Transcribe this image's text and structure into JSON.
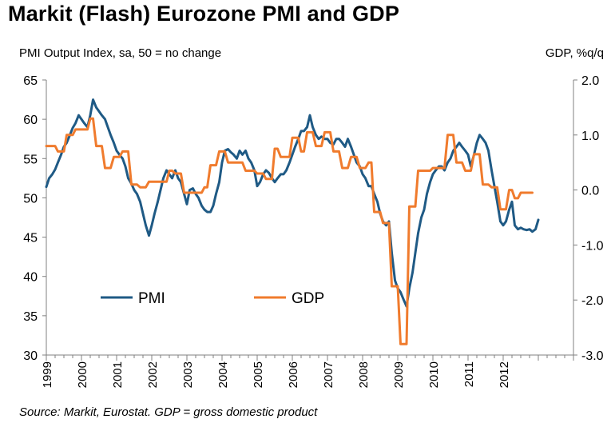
{
  "title": "Markit (Flash) Eurozone PMI and GDP",
  "chart_data": {
    "type": "line",
    "title": "Markit (Flash) Eurozone PMI and GDP",
    "ylabel_left": "PMI Output Index, sa, 50 = no change",
    "ylabel_right": "GDP, %q/q",
    "source": "Source: Markit, Eurostat. GDP = gross domestic product",
    "x_range": [
      1999.0,
      2014.0
    ],
    "ylim_left": [
      30,
      65
    ],
    "ylim_right": [
      -3.0,
      2.0
    ],
    "yticks_left": [
      "65",
      "60",
      "55",
      "50",
      "45",
      "40",
      "35",
      "30"
    ],
    "yticks_right": [
      "2.0",
      "1.0",
      "0.0",
      "-1.0",
      "-2.0",
      "-3.0"
    ],
    "xticks": [
      "1999",
      "2000",
      "2001",
      "2002",
      "2003",
      "2004",
      "2005",
      "2006",
      "2007",
      "2008",
      "2009",
      "2010",
      "2011",
      "2012"
    ],
    "grid": false,
    "legend": "bottom-left",
    "colors": {
      "PMI": "#1f5a85",
      "GDP": "#f07b2d",
      "axis": "#808080"
    },
    "series": [
      {
        "name": "PMI",
        "axis": "left",
        "points": [
          [
            1999.0,
            51.4
          ],
          [
            1999.08,
            52.5
          ],
          [
            1999.17,
            53.0
          ],
          [
            1999.25,
            53.6
          ],
          [
            1999.33,
            54.5
          ],
          [
            1999.42,
            55.5
          ],
          [
            1999.5,
            56.5
          ],
          [
            1999.58,
            57.0
          ],
          [
            1999.67,
            58.0
          ],
          [
            1999.75,
            58.9
          ],
          [
            1999.83,
            59.5
          ],
          [
            1999.92,
            60.5
          ],
          [
            2000.0,
            60.0
          ],
          [
            2000.08,
            59.5
          ],
          [
            2000.17,
            59.0
          ],
          [
            2000.25,
            60.5
          ],
          [
            2000.33,
            62.5
          ],
          [
            2000.42,
            61.5
          ],
          [
            2000.5,
            61.0
          ],
          [
            2000.58,
            60.5
          ],
          [
            2000.67,
            60.0
          ],
          [
            2000.75,
            59.0
          ],
          [
            2000.83,
            58.0
          ],
          [
            2000.92,
            57.0
          ],
          [
            2001.0,
            56.0
          ],
          [
            2001.08,
            55.5
          ],
          [
            2001.17,
            55.0
          ],
          [
            2001.25,
            54.0
          ],
          [
            2001.33,
            52.5
          ],
          [
            2001.42,
            51.8
          ],
          [
            2001.5,
            51.0
          ],
          [
            2001.58,
            50.5
          ],
          [
            2001.67,
            49.5
          ],
          [
            2001.75,
            48.0
          ],
          [
            2001.83,
            46.5
          ],
          [
            2001.92,
            45.2
          ],
          [
            2002.0,
            46.5
          ],
          [
            2002.08,
            48.0
          ],
          [
            2002.17,
            49.5
          ],
          [
            2002.25,
            51.0
          ],
          [
            2002.33,
            52.5
          ],
          [
            2002.42,
            53.5
          ],
          [
            2002.5,
            53.0
          ],
          [
            2002.58,
            52.5
          ],
          [
            2002.67,
            53.5
          ],
          [
            2002.75,
            52.5
          ],
          [
            2002.83,
            52.0
          ],
          [
            2002.92,
            50.5
          ],
          [
            2003.0,
            49.2
          ],
          [
            2003.08,
            51.0
          ],
          [
            2003.17,
            51.2
          ],
          [
            2003.25,
            50.5
          ],
          [
            2003.33,
            50.0
          ],
          [
            2003.42,
            49.0
          ],
          [
            2003.5,
            48.5
          ],
          [
            2003.58,
            48.2
          ],
          [
            2003.67,
            48.2
          ],
          [
            2003.75,
            49.0
          ],
          [
            2003.83,
            50.5
          ],
          [
            2003.92,
            52.0
          ],
          [
            2004.0,
            54.5
          ],
          [
            2004.08,
            56.0
          ],
          [
            2004.17,
            56.2
          ],
          [
            2004.25,
            55.8
          ],
          [
            2004.33,
            55.5
          ],
          [
            2004.42,
            55.0
          ],
          [
            2004.5,
            56.0
          ],
          [
            2004.58,
            55.5
          ],
          [
            2004.67,
            56.0
          ],
          [
            2004.75,
            55.0
          ],
          [
            2004.83,
            54.5
          ],
          [
            2004.92,
            53.5
          ],
          [
            2005.0,
            51.5
          ],
          [
            2005.08,
            52.0
          ],
          [
            2005.17,
            53.0
          ],
          [
            2005.25,
            53.5
          ],
          [
            2005.33,
            53.2
          ],
          [
            2005.42,
            52.5
          ],
          [
            2005.5,
            52.0
          ],
          [
            2005.58,
            52.5
          ],
          [
            2005.67,
            53.0
          ],
          [
            2005.75,
            53.0
          ],
          [
            2005.83,
            53.5
          ],
          [
            2005.92,
            54.5
          ],
          [
            2006.0,
            55.5
          ],
          [
            2006.08,
            56.5
          ],
          [
            2006.17,
            57.5
          ],
          [
            2006.25,
            58.5
          ],
          [
            2006.33,
            58.5
          ],
          [
            2006.42,
            59.0
          ],
          [
            2006.5,
            60.5
          ],
          [
            2006.58,
            59.0
          ],
          [
            2006.67,
            58.0
          ],
          [
            2006.75,
            57.5
          ],
          [
            2006.83,
            57.8
          ],
          [
            2006.92,
            57.5
          ],
          [
            2007.0,
            57.5
          ],
          [
            2007.08,
            57.0
          ],
          [
            2007.17,
            56.8
          ],
          [
            2007.25,
            57.5
          ],
          [
            2007.33,
            57.5
          ],
          [
            2007.42,
            57.0
          ],
          [
            2007.5,
            56.5
          ],
          [
            2007.58,
            57.5
          ],
          [
            2007.67,
            56.5
          ],
          [
            2007.75,
            55.5
          ],
          [
            2007.83,
            54.5
          ],
          [
            2007.92,
            54.0
          ],
          [
            2008.0,
            53.0
          ],
          [
            2008.08,
            52.5
          ],
          [
            2008.17,
            51.5
          ],
          [
            2008.25,
            51.5
          ],
          [
            2008.33,
            50.5
          ],
          [
            2008.42,
            49.5
          ],
          [
            2008.5,
            48.0
          ],
          [
            2008.58,
            47.0
          ],
          [
            2008.67,
            46.5
          ],
          [
            2008.75,
            47.0
          ],
          [
            2008.83,
            43.0
          ],
          [
            2008.92,
            39.5
          ],
          [
            2009.0,
            38.5
          ],
          [
            2009.08,
            38.0
          ],
          [
            2009.17,
            37.0
          ],
          [
            2009.25,
            36.2
          ],
          [
            2009.33,
            38.5
          ],
          [
            2009.42,
            40.5
          ],
          [
            2009.5,
            43.0
          ],
          [
            2009.58,
            45.5
          ],
          [
            2009.67,
            47.5
          ],
          [
            2009.75,
            48.5
          ],
          [
            2009.83,
            50.5
          ],
          [
            2009.92,
            52.0
          ],
          [
            2010.0,
            53.0
          ],
          [
            2010.08,
            53.5
          ],
          [
            2010.17,
            54.0
          ],
          [
            2010.25,
            54.0
          ],
          [
            2010.33,
            53.5
          ],
          [
            2010.42,
            54.5
          ],
          [
            2010.5,
            55.0
          ],
          [
            2010.58,
            56.0
          ],
          [
            2010.67,
            56.5
          ],
          [
            2010.75,
            57.0
          ],
          [
            2010.83,
            56.5
          ],
          [
            2010.92,
            56.0
          ],
          [
            2011.0,
            55.5
          ],
          [
            2011.08,
            54.0
          ],
          [
            2011.17,
            55.5
          ],
          [
            2011.25,
            57.0
          ],
          [
            2011.33,
            58.0
          ],
          [
            2011.42,
            57.5
          ],
          [
            2011.5,
            57.0
          ],
          [
            2011.58,
            56.0
          ],
          [
            2011.67,
            53.5
          ],
          [
            2011.75,
            51.5
          ],
          [
            2011.83,
            49.5
          ],
          [
            2011.92,
            47.0
          ],
          [
            2012.0,
            46.5
          ],
          [
            2012.08,
            47.0
          ],
          [
            2012.17,
            48.5
          ],
          [
            2012.25,
            49.5
          ],
          [
            2012.33,
            46.5
          ],
          [
            2012.42,
            46.0
          ],
          [
            2012.5,
            46.2
          ],
          [
            2012.58,
            46.0
          ],
          [
            2012.67,
            45.9
          ],
          [
            2012.75,
            46.0
          ],
          [
            2012.83,
            45.7
          ],
          [
            2012.92,
            46.0
          ],
          [
            2013.0,
            47.2
          ]
        ]
      },
      {
        "name": "GDP",
        "axis": "right",
        "points": [
          [
            1999.0,
            0.8
          ],
          [
            1999.25,
            0.8
          ],
          [
            1999.33,
            0.7
          ],
          [
            1999.5,
            0.7
          ],
          [
            1999.58,
            1.0
          ],
          [
            1999.75,
            1.0
          ],
          [
            1999.83,
            1.1
          ],
          [
            2000.17,
            1.1
          ],
          [
            2000.25,
            1.3
          ],
          [
            2000.33,
            1.3
          ],
          [
            2000.42,
            0.8
          ],
          [
            2000.58,
            0.8
          ],
          [
            2000.67,
            0.4
          ],
          [
            2000.83,
            0.4
          ],
          [
            2000.92,
            0.6
          ],
          [
            2001.08,
            0.6
          ],
          [
            2001.17,
            0.7
          ],
          [
            2001.33,
            0.7
          ],
          [
            2001.42,
            0.1
          ],
          [
            2001.58,
            0.1
          ],
          [
            2001.67,
            0.05
          ],
          [
            2001.83,
            0.05
          ],
          [
            2001.92,
            0.15
          ],
          [
            2002.42,
            0.15
          ],
          [
            2002.5,
            0.35
          ],
          [
            2002.58,
            0.35
          ],
          [
            2002.67,
            0.3
          ],
          [
            2002.83,
            0.3
          ],
          [
            2002.92,
            -0.05
          ],
          [
            2003.42,
            -0.05
          ],
          [
            2003.5,
            0.05
          ],
          [
            2003.58,
            0.05
          ],
          [
            2003.67,
            0.45
          ],
          [
            2003.83,
            0.45
          ],
          [
            2003.92,
            0.7
          ],
          [
            2004.08,
            0.7
          ],
          [
            2004.17,
            0.5
          ],
          [
            2004.58,
            0.5
          ],
          [
            2004.67,
            0.35
          ],
          [
            2004.92,
            0.35
          ],
          [
            2005.0,
            0.3
          ],
          [
            2005.17,
            0.3
          ],
          [
            2005.25,
            0.2
          ],
          [
            2005.42,
            0.2
          ],
          [
            2005.5,
            0.75
          ],
          [
            2005.58,
            0.75
          ],
          [
            2005.67,
            0.6
          ],
          [
            2005.92,
            0.6
          ],
          [
            2006.0,
            0.95
          ],
          [
            2006.17,
            0.95
          ],
          [
            2006.25,
            0.7
          ],
          [
            2006.33,
            0.7
          ],
          [
            2006.42,
            1.05
          ],
          [
            2006.58,
            1.05
          ],
          [
            2006.67,
            0.8
          ],
          [
            2006.83,
            0.8
          ],
          [
            2006.92,
            1.05
          ],
          [
            2007.08,
            1.05
          ],
          [
            2007.17,
            0.7
          ],
          [
            2007.33,
            0.7
          ],
          [
            2007.42,
            0.4
          ],
          [
            2007.58,
            0.4
          ],
          [
            2007.67,
            0.6
          ],
          [
            2007.83,
            0.6
          ],
          [
            2007.92,
            0.4
          ],
          [
            2008.08,
            0.4
          ],
          [
            2008.17,
            0.5
          ],
          [
            2008.25,
            0.5
          ],
          [
            2008.33,
            -0.4
          ],
          [
            2008.5,
            -0.4
          ],
          [
            2008.58,
            -0.6
          ],
          [
            2008.75,
            -0.6
          ],
          [
            2008.83,
            -1.75
          ],
          [
            2009.0,
            -1.75
          ],
          [
            2009.08,
            -2.8
          ],
          [
            2009.25,
            -2.8
          ],
          [
            2009.33,
            -0.3
          ],
          [
            2009.5,
            -0.3
          ],
          [
            2009.58,
            0.35
          ],
          [
            2009.92,
            0.35
          ],
          [
            2010.0,
            0.4
          ],
          [
            2010.33,
            0.4
          ],
          [
            2010.42,
            1.0
          ],
          [
            2010.58,
            1.0
          ],
          [
            2010.67,
            0.5
          ],
          [
            2010.83,
            0.5
          ],
          [
            2010.92,
            0.35
          ],
          [
            2011.08,
            0.35
          ],
          [
            2011.17,
            0.65
          ],
          [
            2011.33,
            0.65
          ],
          [
            2011.42,
            0.1
          ],
          [
            2011.58,
            0.1
          ],
          [
            2011.67,
            0.05
          ],
          [
            2011.83,
            0.05
          ],
          [
            2011.92,
            -0.35
          ],
          [
            2012.08,
            -0.35
          ],
          [
            2012.17,
            0.0
          ],
          [
            2012.25,
            0.0
          ],
          [
            2012.33,
            -0.15
          ],
          [
            2012.42,
            -0.15
          ],
          [
            2012.5,
            -0.05
          ],
          [
            2012.67,
            -0.05
          ],
          [
            2012.75,
            -0.05
          ],
          [
            2012.83,
            -0.05
          ]
        ]
      }
    ]
  }
}
